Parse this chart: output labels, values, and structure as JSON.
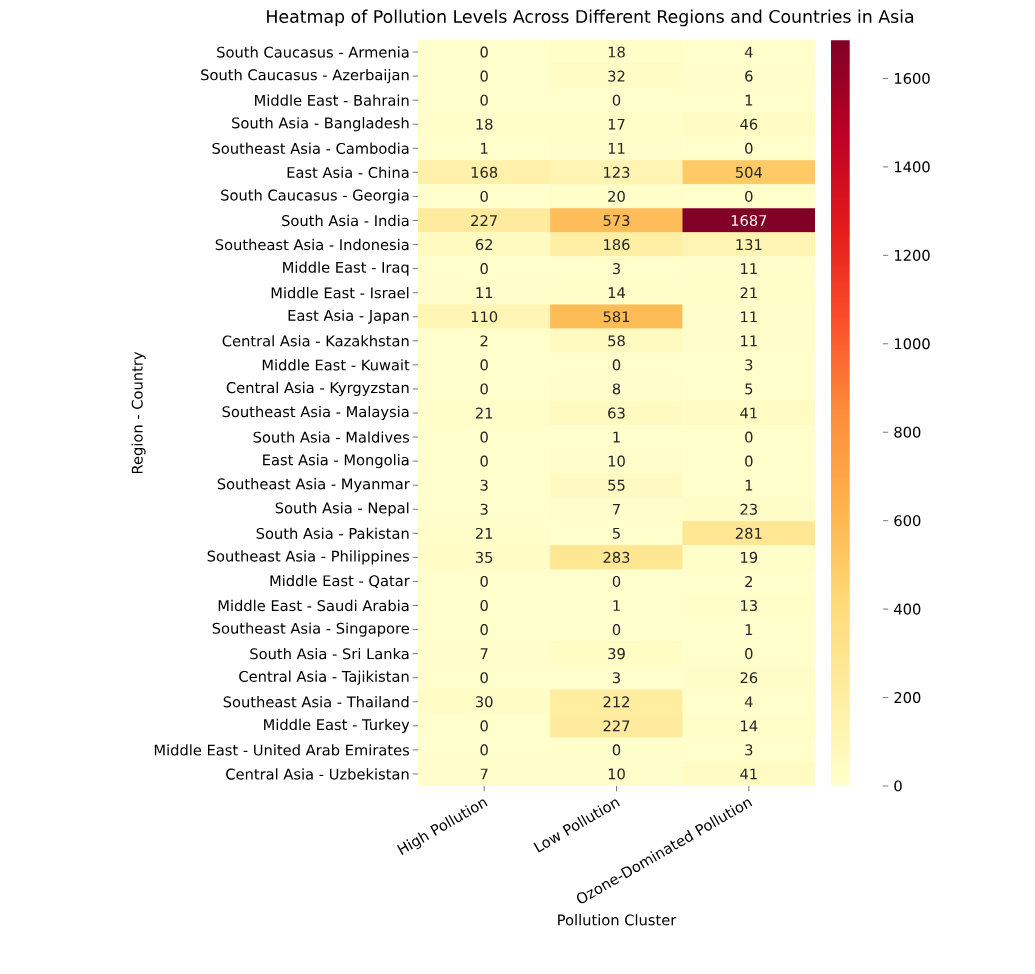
{
  "chart_data": {
    "type": "heatmap",
    "title": "Heatmap of Pollution Levels Across Different Regions and Countries in Asia",
    "xlabel": "Pollution Cluster",
    "ylabel": "Region - Country",
    "categories": [
      "High Pollution",
      "Low Pollution",
      "Ozone-Dominated Pollution"
    ],
    "y_categories": [
      "South Caucasus - Armenia",
      "South Caucasus - Azerbaijan",
      "Middle East - Bahrain",
      "South Asia - Bangladesh",
      "Southeast Asia - Cambodia",
      "East Asia - China",
      "South Caucasus - Georgia",
      "South Asia - India",
      "Southeast Asia - Indonesia",
      "Middle East - Iraq",
      "Middle East - Israel",
      "East Asia - Japan",
      "Central Asia - Kazakhstan",
      "Middle East - Kuwait",
      "Central Asia - Kyrgyzstan",
      "Southeast Asia - Malaysia",
      "South Asia - Maldives",
      "East Asia - Mongolia",
      "Southeast Asia - Myanmar",
      "South Asia - Nepal",
      "South Asia - Pakistan",
      "Southeast Asia - Philippines",
      "Middle East - Qatar",
      "Middle East - Saudi Arabia",
      "Southeast Asia - Singapore",
      "South Asia - Sri Lanka",
      "Central Asia - Tajikistan",
      "Southeast Asia - Thailand",
      "Middle East - Turkey",
      "Middle East - United Arab Emirates",
      "Central Asia - Uzbekistan"
    ],
    "cells": [
      [
        0,
        18,
        4
      ],
      [
        0,
        32,
        6
      ],
      [
        0,
        0,
        1
      ],
      [
        18,
        17,
        46
      ],
      [
        1,
        11,
        0
      ],
      [
        168,
        123,
        504
      ],
      [
        0,
        20,
        0
      ],
      [
        227,
        573,
        1687
      ],
      [
        62,
        186,
        131
      ],
      [
        0,
        3,
        11
      ],
      [
        11,
        14,
        21
      ],
      [
        110,
        581,
        11
      ],
      [
        2,
        58,
        11
      ],
      [
        0,
        0,
        3
      ],
      [
        0,
        8,
        5
      ],
      [
        21,
        63,
        41
      ],
      [
        0,
        1,
        0
      ],
      [
        0,
        10,
        0
      ],
      [
        3,
        55,
        1
      ],
      [
        3,
        7,
        23
      ],
      [
        21,
        5,
        281
      ],
      [
        35,
        283,
        19
      ],
      [
        0,
        0,
        2
      ],
      [
        0,
        1,
        13
      ],
      [
        0,
        0,
        1
      ],
      [
        7,
        39,
        0
      ],
      [
        0,
        3,
        26
      ],
      [
        30,
        212,
        4
      ],
      [
        0,
        227,
        14
      ],
      [
        0,
        0,
        3
      ],
      [
        7,
        10,
        41
      ]
    ],
    "clim": [
      0,
      1687
    ],
    "cticks": [
      0,
      200,
      400,
      600,
      800,
      1000,
      1200,
      1400,
      1600
    ],
    "data_labels": true
  }
}
